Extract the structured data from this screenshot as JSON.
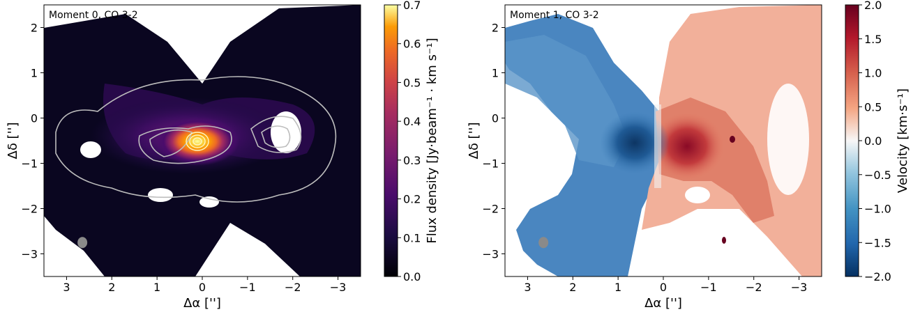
{
  "chart_data": [
    {
      "type": "heatmap",
      "title": "Moment 0, CO 3-2",
      "xlabel": "Δα ['']",
      "ylabel": "Δδ ['']",
      "xlim": [
        3.5,
        -3.5
      ],
      "ylim": [
        -3.5,
        2.5
      ],
      "xticks": [
        3,
        2,
        1,
        0,
        -1,
        -2,
        -3
      ],
      "yticks": [
        2,
        1,
        0,
        -1,
        -2,
        -3
      ],
      "colorbar": {
        "label": "Flux density [Jy·beam⁻¹ · km s⁻¹]",
        "range": [
          0.0,
          0.7
        ],
        "ticks": [
          "0.0",
          "0.1",
          "0.2",
          "0.3",
          "0.4",
          "0.5",
          "0.6",
          "0.7"
        ],
        "colormap": "inferno"
      },
      "peak": {
        "x": -0.03,
        "y": -0.55,
        "value": 0.7
      },
      "contours": "grey continuum contours centered near (0, -0.5)",
      "beam": {
        "x": 2.65,
        "y": -2.75
      }
    },
    {
      "type": "heatmap",
      "title": "Moment 1, CO 3-2",
      "xlabel": "Δα ['']",
      "ylabel": "Δδ ['']",
      "xlim": [
        3.5,
        -3.5
      ],
      "ylim": [
        -3.5,
        2.5
      ],
      "xticks": [
        3,
        2,
        1,
        0,
        -1,
        -2,
        -3
      ],
      "yticks": [
        2,
        1,
        0,
        -1,
        -2,
        -3
      ],
      "colorbar": {
        "label": "Velocity [km·s⁻¹]",
        "range": [
          -2.0,
          2.0
        ],
        "ticks": [
          "2.0",
          "1.5",
          "1.0",
          "0.5",
          "0.0",
          "−0.5",
          "−1.0",
          "−1.5",
          "−2.0"
        ],
        "colormap": "RdBu_r"
      },
      "beam": {
        "x": 2.65,
        "y": -2.75
      }
    }
  ],
  "tick_text": {
    "x": [
      "3",
      "2",
      "1",
      "0",
      "−1",
      "−2",
      "−3"
    ],
    "y": [
      "2",
      "1",
      "0",
      "−1",
      "−2",
      "−3"
    ]
  }
}
